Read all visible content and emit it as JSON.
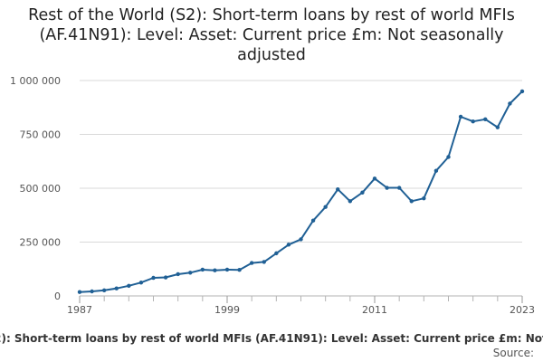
{
  "chart_data": {
    "type": "line",
    "title": "Rest of the World (S2): Short-term loans by rest of world MFIs (AF.41N91): Level: Asset: Current price £m: Not seasonally adjusted",
    "xlabel": "",
    "ylabel": "",
    "ylim": [
      0,
      1000000
    ],
    "y_ticks": [
      0,
      250000,
      500000,
      750000,
      1000000
    ],
    "y_tick_labels": [
      "0",
      "250 000",
      "500 000",
      "750 000",
      "1 000 000"
    ],
    "x_ticks": [
      1987,
      1999,
      2011,
      2023
    ],
    "x_tick_labels": [
      "1987",
      "1999",
      "2011",
      "2023"
    ],
    "xlim": [
      1987,
      2023
    ],
    "grid": true,
    "legend_position": "bottom",
    "x": [
      1987,
      1988,
      1989,
      1990,
      1991,
      1992,
      1993,
      1994,
      1995,
      1996,
      1997,
      1998,
      1999,
      2000,
      2001,
      2002,
      2003,
      2004,
      2005,
      2006,
      2007,
      2008,
      2009,
      2010,
      2011,
      2012,
      2013,
      2014,
      2015,
      2016,
      2017,
      2018,
      2019,
      2020,
      2021,
      2022,
      2023
    ],
    "series": [
      {
        "name": "Rest of the World (S2): Short-term loans by rest of world MFIs (AF.41N91): Level: Asset: Current price £m: Not seasonally adjusted",
        "color": "#206095",
        "values": [
          18000,
          21000,
          26000,
          35000,
          47000,
          62000,
          84000,
          86000,
          101000,
          108000,
          122000,
          119000,
          122000,
          121000,
          153000,
          158000,
          198000,
          238000,
          263000,
          350000,
          413000,
          495000,
          440000,
          480000,
          545000,
          502000,
          502000,
          440000,
          453000,
          581000,
          645000,
          832000,
          810000,
          820000,
          783000,
          893000,
          950000
        ]
      }
    ]
  },
  "source_label": "Source:"
}
